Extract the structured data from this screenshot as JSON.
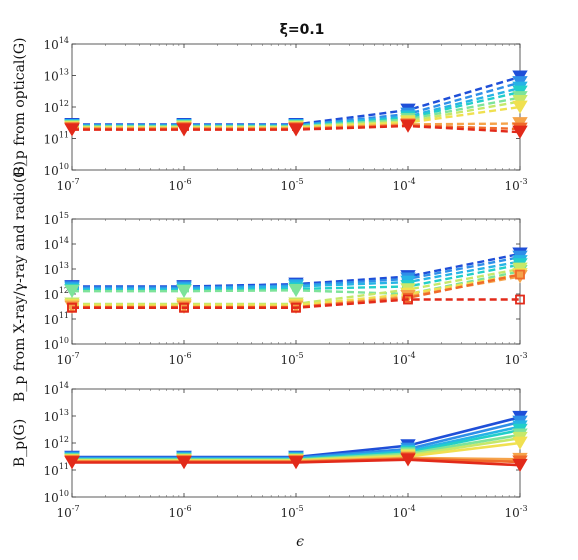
{
  "title": "ξ=0.1",
  "xlabel": "ϵ",
  "xscale": "log",
  "yscale": "log",
  "x_ticks": [
    {
      "base": "10",
      "exp": "-7"
    },
    {
      "base": "10",
      "exp": "-6"
    },
    {
      "base": "10",
      "exp": "-5"
    },
    {
      "base": "10",
      "exp": "-4"
    },
    {
      "base": "10",
      "exp": "-3"
    }
  ],
  "colors": [
    "#1f4fd8",
    "#2f8fe8",
    "#27b3e6",
    "#22cfc9",
    "#7de39a",
    "#c6e86a",
    "#f0e050",
    "#f5a34a",
    "#f06a2a",
    "#e22a1a"
  ],
  "chart_data": [
    {
      "type": "line",
      "ylabel": "B_p from optical(G)",
      "ylim": [
        10000000000.0,
        100000000000000.0
      ],
      "y_ticks": [
        {
          "base": "10",
          "exp": "10",
          "value": 10000000000.0
        },
        {
          "base": "10",
          "exp": "11",
          "value": 100000000000.0
        },
        {
          "base": "10",
          "exp": "12",
          "value": 1000000000000.0
        },
        {
          "base": "10",
          "exp": "13",
          "value": 10000000000000.0
        },
        {
          "base": "10",
          "exp": "14",
          "value": 100000000000000.0
        }
      ],
      "line_style": "dashed",
      "marker": "triangle-down",
      "x": [
        1e-07,
        1e-06,
        1e-05,
        0.0001,
        0.001
      ],
      "series": [
        {
          "values": [
            280000000000.0,
            280000000000.0,
            280000000000.0,
            800000000000.0,
            9000000000000.0
          ]
        },
        {
          "values": [
            260000000000.0,
            260000000000.0,
            260000000000.0,
            600000000000.0,
            6000000000000.0
          ]
        },
        {
          "values": [
            260000000000.0,
            260000000000.0,
            260000000000.0,
            500000000000.0,
            4000000000000.0
          ]
        },
        {
          "values": [
            240000000000.0,
            240000000000.0,
            240000000000.0,
            450000000000.0,
            3000000000000.0
          ]
        },
        {
          "values": [
            240000000000.0,
            240000000000.0,
            240000000000.0,
            400000000000.0,
            2000000000000.0
          ]
        },
        {
          "values": [
            230000000000.0,
            230000000000.0,
            230000000000.0,
            350000000000.0,
            1500000000000.0
          ]
        },
        {
          "values": [
            220000000000.0,
            220000000000.0,
            220000000000.0,
            320000000000.0,
            1000000000000.0
          ]
        },
        {
          "values": [
            210000000000.0,
            210000000000.0,
            210000000000.0,
            280000000000.0,
            300000000000.0
          ]
        },
        {
          "values": [
            200000000000.0,
            200000000000.0,
            200000000000.0,
            260000000000.0,
            200000000000.0
          ]
        },
        {
          "values": [
            190000000000.0,
            190000000000.0,
            190000000000.0,
            250000000000.0,
            160000000000.0
          ]
        }
      ]
    },
    {
      "type": "line",
      "ylabel": "B_p from X-ray/γ-ray and radio(G)",
      "ylim": [
        10000000000.0,
        1000000000000000.0
      ],
      "y_ticks": [
        {
          "base": "10",
          "exp": "10",
          "value": 10000000000.0
        },
        {
          "base": "10",
          "exp": "11",
          "value": 100000000000.0
        },
        {
          "base": "10",
          "exp": "12",
          "value": 1000000000000.0
        },
        {
          "base": "10",
          "exp": "13",
          "value": 10000000000000.0
        },
        {
          "base": "10",
          "exp": "14",
          "value": 100000000000000.0
        },
        {
          "base": "10",
          "exp": "15",
          "value": 1000000000000000.0
        }
      ],
      "line_style": "dashed",
      "marker": "mixed (triangle-down / square)",
      "x": [
        1e-07,
        1e-06,
        1e-05,
        0.0001,
        0.001
      ],
      "series": [
        {
          "values": [
            2000000000000.0,
            2000000000000.0,
            2500000000000.0,
            5000000000000.0,
            40000000000000.0
          ]
        },
        {
          "values": [
            1800000000000.0,
            1800000000000.0,
            2200000000000.0,
            4000000000000.0,
            30000000000000.0
          ]
        },
        {
          "values": [
            1600000000000.0,
            1600000000000.0,
            2000000000000.0,
            3000000000000.0,
            20000000000000.0
          ]
        },
        {
          "values": [
            1400000000000.0,
            1400000000000.0,
            1600000000000.0,
            2000000000000.0,
            15000000000000.0
          ]
        },
        {
          "values": [
            1300000000000.0,
            1300000000000.0,
            1400000000000.0,
            1000000000000.0,
            8000000000000.0
          ]
        },
        {
          "values": [
            400000000000.0,
            400000000000.0,
            400000000000.0,
            1500000000000.0,
            10000000000000.0
          ]
        },
        {
          "values": [
            350000000000.0,
            350000000000.0,
            350000000000.0,
            1000000000000.0,
            6000000000000.0
          ]
        },
        {
          "values": [
            300000000000.0,
            300000000000.0,
            300000000000.0,
            800000000000.0,
            5000000000000.0
          ]
        },
        {
          "values": [
            300000000000.0,
            300000000000.0,
            300000000000.0,
            700000000000.0,
            6000000000000.0
          ]
        },
        {
          "values": [
            280000000000.0,
            280000000000.0,
            280000000000.0,
            600000000000.0,
            600000000000.0
          ]
        }
      ]
    },
    {
      "type": "line",
      "ylabel": "B_p(G)",
      "ylim": [
        10000000000.0,
        100000000000000.0
      ],
      "y_ticks": [
        {
          "base": "10",
          "exp": "10",
          "value": 10000000000.0
        },
        {
          "base": "10",
          "exp": "11",
          "value": 100000000000.0
        },
        {
          "base": "10",
          "exp": "12",
          "value": 1000000000000.0
        },
        {
          "base": "10",
          "exp": "13",
          "value": 10000000000000.0
        },
        {
          "base": "10",
          "exp": "14",
          "value": 100000000000000.0
        }
      ],
      "line_style": "solid",
      "marker": "triangle-down",
      "x": [
        1e-07,
        1e-06,
        1e-05,
        0.0001,
        0.001
      ],
      "series": [
        {
          "values": [
            300000000000.0,
            300000000000.0,
            300000000000.0,
            800000000000.0,
            9000000000000.0
          ]
        },
        {
          "values": [
            280000000000.0,
            280000000000.0,
            280000000000.0,
            600000000000.0,
            6000000000000.0
          ]
        },
        {
          "values": [
            260000000000.0,
            260000000000.0,
            260000000000.0,
            500000000000.0,
            4000000000000.0
          ]
        },
        {
          "values": [
            250000000000.0,
            250000000000.0,
            250000000000.0,
            450000000000.0,
            3000000000000.0
          ]
        },
        {
          "values": [
            240000000000.0,
            240000000000.0,
            240000000000.0,
            400000000000.0,
            2000000000000.0
          ]
        },
        {
          "values": [
            230000000000.0,
            230000000000.0,
            230000000000.0,
            350000000000.0,
            1500000000000.0
          ]
        },
        {
          "values": [
            220000000000.0,
            220000000000.0,
            220000000000.0,
            320000000000.0,
            1000000000000.0
          ]
        },
        {
          "values": [
            210000000000.0,
            210000000000.0,
            210000000000.0,
            280000000000.0,
            250000000000.0
          ]
        },
        {
          "values": [
            200000000000.0,
            200000000000.0,
            200000000000.0,
            260000000000.0,
            200000000000.0
          ]
        },
        {
          "values": [
            190000000000.0,
            190000000000.0,
            190000000000.0,
            240000000000.0,
            150000000000.0
          ]
        }
      ]
    }
  ]
}
